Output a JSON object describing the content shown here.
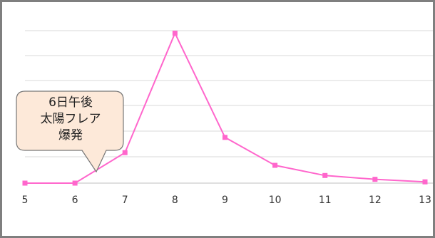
{
  "chart_data": {
    "type": "line",
    "categories": [
      "5",
      "6",
      "7",
      "8",
      "9",
      "10",
      "11",
      "12",
      "13"
    ],
    "series": [
      {
        "values": [
          0,
          0,
          12,
          59,
          18,
          7,
          3,
          1.5,
          0.5
        ]
      }
    ],
    "ylim": [
      0,
      60
    ],
    "grid": true,
    "legend": "none",
    "annotation": {
      "lines": [
        "6日午後",
        "太陽フレア",
        "爆発"
      ]
    }
  },
  "colors": {
    "line": "#ff66cc",
    "marker": "#ff66cc",
    "grid": "#d9d9d9",
    "callout_fill": "#fde9d9",
    "callout_border": "#777777",
    "frame": "#7f7f7f"
  }
}
